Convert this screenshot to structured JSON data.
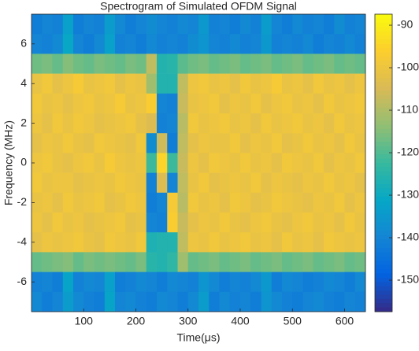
{
  "chart_data": {
    "type": "heatmap",
    "title": "Spectrogram of Simulated OFDM Signal",
    "xlabel": "Time(μs)",
    "ylabel": "Frequency (MHz)",
    "colormap": "parula",
    "x": [
      10,
      30,
      50,
      70,
      90,
      110,
      130,
      150,
      170,
      190,
      210,
      230,
      250,
      270,
      290,
      310,
      330,
      350,
      370,
      390,
      410,
      430,
      450,
      470,
      490,
      510,
      530,
      550,
      570,
      590,
      610,
      630
    ],
    "y": [
      7,
      6,
      5,
      4,
      3,
      2,
      1,
      0,
      -1,
      -2,
      -3,
      -4,
      -5,
      -6,
      -7
    ],
    "z": [
      [
        -142,
        -140,
        -141,
        -133,
        -142,
        -140,
        -141,
        -134,
        -139,
        -142,
        -140,
        -138,
        -140,
        -141,
        -139,
        -140,
        -135,
        -141,
        -140,
        -142,
        -139,
        -141,
        -134,
        -140,
        -142,
        -139,
        -141,
        -140,
        -142,
        -138,
        -141,
        -140
      ],
      [
        -140,
        -141,
        -139,
        -131,
        -140,
        -142,
        -139,
        -133,
        -141,
        -140,
        -142,
        -139,
        -141,
        -140,
        -141,
        -138,
        -136,
        -140,
        -141,
        -139,
        -141,
        -140,
        -135,
        -141,
        -140,
        -141,
        -139,
        -142,
        -140,
        -141,
        -139,
        -141
      ],
      [
        -117,
        -116,
        -118,
        -115,
        -117,
        -118,
        -116,
        -117,
        -118,
        -116,
        -117,
        -108,
        -126,
        -125,
        -119,
        -117,
        -116,
        -118,
        -117,
        -116,
        -118,
        -117,
        -116,
        -118,
        -117,
        -116,
        -118,
        -117,
        -116,
        -118,
        -117,
        -118
      ],
      [
        -101,
        -99,
        -102,
        -100,
        -98,
        -101,
        -100,
        -99,
        -102,
        -100,
        -101,
        -112,
        -126,
        -126,
        -108,
        -100,
        -99,
        -101,
        -100,
        -102,
        -99,
        -101,
        -100,
        -98,
        -101,
        -100,
        -102,
        -99,
        -101,
        -100,
        -102,
        -100
      ],
      [
        -99,
        -101,
        -100,
        -102,
        -100,
        -99,
        -101,
        -100,
        -98,
        -101,
        -100,
        -97,
        -140,
        -141,
        -107,
        -101,
        -100,
        -99,
        -102,
        -100,
        -101,
        -99,
        -102,
        -100,
        -99,
        -101,
        -100,
        -102,
        -99,
        -101,
        -100,
        -99
      ],
      [
        -100,
        -102,
        -99,
        -101,
        -99,
        -100,
        -102,
        -101,
        -100,
        -99,
        -102,
        -104,
        -141,
        -140,
        -109,
        -99,
        -101,
        -100,
        -99,
        -101,
        -100,
        -102,
        -99,
        -101,
        -100,
        -99,
        -101,
        -100,
        -102,
        -99,
        -101,
        -100
      ],
      [
        -102,
        -100,
        -101,
        -99,
        -101,
        -102,
        -99,
        -100,
        -101,
        -102,
        -99,
        -138,
        -106,
        -142,
        -108,
        -102,
        -100,
        -101,
        -101,
        -99,
        -102,
        -100,
        -101,
        -99,
        -102,
        -101,
        -99,
        -101,
        -100,
        -102,
        -99,
        -101
      ],
      [
        -100,
        -99,
        -101,
        -102,
        -100,
        -99,
        -101,
        -98,
        -100,
        -101,
        -100,
        -122,
        -95,
        -122,
        -107,
        -100,
        -102,
        -99,
        -100,
        -101,
        -99,
        -101,
        -100,
        -102,
        -99,
        -100,
        -101,
        -99,
        -102,
        -100,
        -101,
        -99
      ],
      [
        -99,
        -101,
        -100,
        -100,
        -102,
        -101,
        -100,
        -101,
        -99,
        -100,
        -101,
        -141,
        -104,
        -140,
        -108,
        -101,
        -99,
        -102,
        -101,
        -100,
        -101,
        -99,
        -102,
        -100,
        -101,
        -102,
        -100,
        -101,
        -99,
        -101,
        -100,
        -102
      ],
      [
        -101,
        -100,
        -102,
        -99,
        -101,
        -100,
        -99,
        -102,
        -101,
        -99,
        -100,
        -142,
        -140,
        -98,
        -109,
        -99,
        -101,
        -100,
        -102,
        -99,
        -100,
        -102,
        -101,
        -99,
        -100,
        -101,
        -102,
        -100,
        -101,
        -99,
        -102,
        -100
      ],
      [
        -100,
        -102,
        -99,
        -101,
        -100,
        -102,
        -101,
        -100,
        -99,
        -102,
        -101,
        -140,
        -141,
        -97,
        -107,
        -102,
        -100,
        -101,
        -99,
        -101,
        -102,
        -100,
        -99,
        -101,
        -102,
        -100,
        -99,
        -101,
        -100,
        -102,
        -99,
        -101
      ],
      [
        -102,
        -100,
        -101,
        -100,
        -99,
        -101,
        -102,
        -99,
        -100,
        -101,
        -99,
        -127,
        -126,
        -126,
        -108,
        -100,
        -101,
        -99,
        -101,
        -100,
        -99,
        -101,
        -100,
        -102,
        -99,
        -101,
        -100,
        -102,
        -99,
        -100,
        -101,
        -100
      ],
      [
        -118,
        -117,
        -116,
        -115,
        -118,
        -116,
        -117,
        -116,
        -117,
        -118,
        -116,
        -125,
        -126,
        -124,
        -112,
        -118,
        -117,
        -116,
        -118,
        -117,
        -116,
        -118,
        -117,
        -116,
        -118,
        -117,
        -116,
        -118,
        -117,
        -116,
        -118,
        -117
      ],
      [
        -141,
        -140,
        -142,
        -132,
        -141,
        -139,
        -140,
        -133,
        -142,
        -141,
        -139,
        -140,
        -142,
        -139,
        -140,
        -141,
        -136,
        -139,
        -142,
        -140,
        -141,
        -139,
        -135,
        -142,
        -139,
        -140,
        -142,
        -141,
        -139,
        -140,
        -142,
        -139
      ],
      [
        -139,
        -142,
        -140,
        -134,
        -139,
        -141,
        -142,
        -132,
        -140,
        -139,
        -141,
        -142,
        -139,
        -140,
        -142,
        -139,
        -134,
        -142,
        -139,
        -141,
        -140,
        -142,
        -136,
        -139,
        -141,
        -142,
        -140,
        -139,
        -141,
        -142,
        -140,
        -141
      ]
    ],
    "xlim": [
      0,
      640
    ],
    "ylim": [
      -7.5,
      7.5
    ],
    "xticks": [
      100,
      200,
      300,
      400,
      500,
      600
    ],
    "yticks": [
      -6,
      -4,
      -2,
      0,
      2,
      4,
      6
    ],
    "colorbar": {
      "lim": [
        -157.4,
        -87.4
      ],
      "ticks": [
        -150,
        -140,
        -130,
        -120,
        -110,
        -100,
        -90
      ]
    }
  }
}
